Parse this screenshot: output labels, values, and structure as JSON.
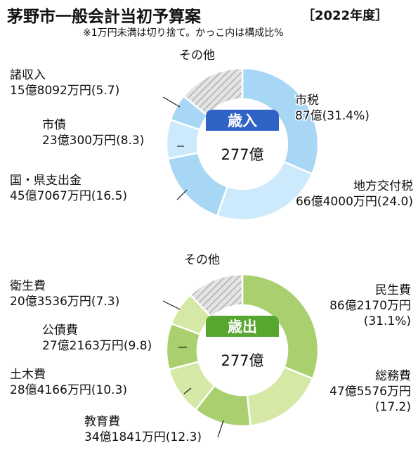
{
  "header": {
    "title": "茅野市一般会計当初予算案",
    "year": "［2022年度］",
    "note": "※1万円未満は切り捨て。かっこ内は構成比%"
  },
  "chart_data": [
    {
      "type": "pie",
      "variant": "donut",
      "center_badge": "歳入",
      "center_total": "277億",
      "badge_color": "#2f63c6",
      "colors": {
        "slice_a": "#a8d6f5",
        "slice_b": "#cdeafc",
        "other_fill": "#d8d8d8",
        "other_hatch": "#b5b5b5"
      },
      "slices": [
        {
          "name": "市税",
          "amount": "87億",
          "share_label": "(31.4%)",
          "value": 31.4
        },
        {
          "name": "地方交付税",
          "amount": "66億4000万円",
          "share_label": "(24.0)",
          "value": 24.0
        },
        {
          "name": "国・県支出金",
          "amount": "45億7067万円",
          "share_label": "(16.5)",
          "value": 16.5
        },
        {
          "name": "市債",
          "amount": "23億300万円",
          "share_label": "(8.3)",
          "value": 8.3
        },
        {
          "name": "諸収入",
          "amount": "15億8092万円",
          "share_label": "(5.7)",
          "value": 5.7
        },
        {
          "name": "その他",
          "amount": "",
          "share_label": "",
          "value": 14.1
        }
      ]
    },
    {
      "type": "pie",
      "variant": "donut",
      "center_badge": "歳出",
      "center_total": "277億",
      "badge_color": "#56a630",
      "colors": {
        "slice_a": "#a9cf6e",
        "slice_b": "#d5e8a6",
        "other_fill": "#d8d8d8",
        "other_hatch": "#b5b5b5"
      },
      "slices": [
        {
          "name": "民生費",
          "amount": "86億2170万円",
          "share_label": "(31.1%)",
          "value": 31.1
        },
        {
          "name": "総務費",
          "amount": "47億5576万円",
          "share_label": "(17.2)",
          "value": 17.2
        },
        {
          "name": "教育費",
          "amount": "34億1841万円",
          "share_label": "(12.3)",
          "value": 12.3
        },
        {
          "name": "土木費",
          "amount": "28億4166万円",
          "share_label": "(10.3)",
          "value": 10.3
        },
        {
          "name": "公債費",
          "amount": "27億2163万円",
          "share_label": "(9.8)",
          "value": 9.8
        },
        {
          "name": "衛生費",
          "amount": "20億3536万円",
          "share_label": "(7.3)",
          "value": 7.3
        },
        {
          "name": "その他",
          "amount": "",
          "share_label": "",
          "value": 12.0
        }
      ]
    }
  ]
}
